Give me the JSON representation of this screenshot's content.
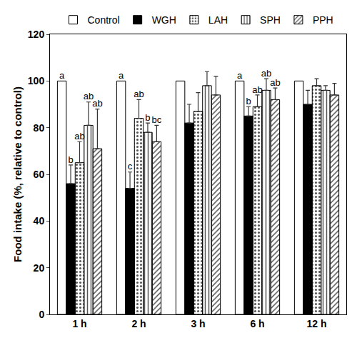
{
  "chart_data": {
    "type": "bar",
    "y_label": "Food intake (%, relative to control)",
    "categories": [
      "1 h",
      "2 h",
      "3 h",
      "6 h",
      "12 h"
    ],
    "ylim": [
      0,
      120
    ],
    "yticks": [
      0,
      20,
      40,
      60,
      80,
      100,
      120
    ],
    "legend": "top",
    "series": [
      {
        "name": "Control",
        "color": "#ffffff",
        "values": [
          100,
          100,
          100,
          100,
          100
        ],
        "letters": [
          "a",
          "a",
          null,
          "a",
          null
        ]
      },
      {
        "name": "WGH",
        "color": "#000000",
        "values": [
          56,
          54,
          82,
          85,
          90
        ],
        "errors": [
          8,
          7,
          8,
          4,
          6
        ],
        "letters": [
          "b",
          "c",
          null,
          "b",
          null
        ]
      },
      {
        "name": "LAH",
        "color": "#c8c8c8",
        "values": [
          65,
          84,
          87,
          89,
          98
        ],
        "errors": [
          9,
          8,
          8,
          5,
          3
        ],
        "letters": [
          "ab",
          "ab",
          null,
          "ab",
          null
        ]
      },
      {
        "name": "SPH",
        "color": "#d4d4d4",
        "values": [
          81,
          78,
          98,
          96,
          96
        ],
        "errors": [
          10,
          4,
          6,
          5,
          2
        ],
        "letters": [
          "ab",
          "b",
          null,
          "ab",
          null
        ]
      },
      {
        "name": "PPH",
        "color": "#808080",
        "values": [
          71,
          74,
          94,
          92,
          94
        ],
        "errors": [
          17,
          7,
          8,
          5,
          5
        ],
        "letters": [
          "ab",
          "bc",
          null,
          "ab",
          null
        ]
      }
    ]
  }
}
